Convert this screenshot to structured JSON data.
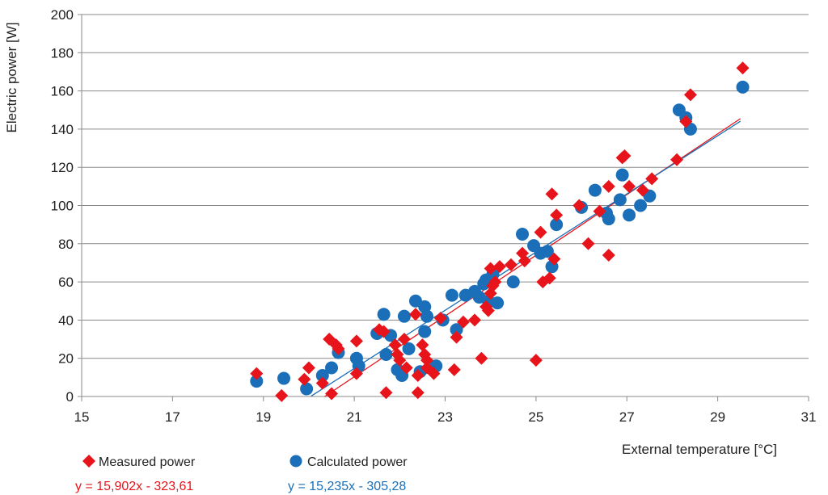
{
  "chart_data": {
    "type": "scatter",
    "xlabel": "External temperature  [°C]",
    "ylabel": "Electric power [W]",
    "xlim": [
      15,
      31
    ],
    "ylim": [
      0,
      200
    ],
    "xticks": [
      15,
      17,
      19,
      21,
      23,
      25,
      27,
      29,
      31
    ],
    "yticks": [
      0,
      20,
      40,
      60,
      80,
      100,
      120,
      140,
      160,
      180,
      200
    ],
    "grid": "horizontal",
    "legend_position": "bottom-left",
    "series": [
      {
        "name": "Measured power",
        "marker": "diamond",
        "color": "#e8141b",
        "trendline": {
          "equation": "y = 15,902x - 323,61",
          "slope": 15.902,
          "intercept": -323.61,
          "x_start": 20.35,
          "x_end": 29.5
        },
        "points": [
          [
            18.85,
            12
          ],
          [
            19.4,
            0.5
          ],
          [
            19.9,
            9
          ],
          [
            20.0,
            15
          ],
          [
            20.3,
            7
          ],
          [
            20.45,
            30
          ],
          [
            20.5,
            1.5
          ],
          [
            20.6,
            27
          ],
          [
            20.65,
            25
          ],
          [
            21.05,
            29
          ],
          [
            21.05,
            12
          ],
          [
            21.55,
            35
          ],
          [
            21.65,
            34
          ],
          [
            21.7,
            2
          ],
          [
            21.9,
            27
          ],
          [
            21.95,
            22
          ],
          [
            22.0,
            19
          ],
          [
            22.1,
            30
          ],
          [
            22.15,
            15
          ],
          [
            22.35,
            43
          ],
          [
            22.4,
            11
          ],
          [
            22.4,
            2
          ],
          [
            22.5,
            27
          ],
          [
            22.55,
            22
          ],
          [
            22.6,
            19
          ],
          [
            22.6,
            15
          ],
          [
            22.75,
            12
          ],
          [
            22.9,
            41
          ],
          [
            23.2,
            14
          ],
          [
            23.25,
            31
          ],
          [
            23.4,
            39
          ],
          [
            23.65,
            40
          ],
          [
            23.8,
            20
          ],
          [
            23.9,
            47
          ],
          [
            23.95,
            45
          ],
          [
            24.0,
            54
          ],
          [
            24.0,
            67
          ],
          [
            24.05,
            58
          ],
          [
            24.1,
            60
          ],
          [
            24.2,
            68
          ],
          [
            24.45,
            69
          ],
          [
            24.7,
            75
          ],
          [
            24.75,
            71
          ],
          [
            25.0,
            19
          ],
          [
            25.1,
            86
          ],
          [
            25.15,
            60
          ],
          [
            25.3,
            62
          ],
          [
            25.35,
            106
          ],
          [
            25.4,
            72
          ],
          [
            25.45,
            95
          ],
          [
            25.95,
            100
          ],
          [
            26.15,
            80
          ],
          [
            26.4,
            97
          ],
          [
            26.6,
            110
          ],
          [
            26.6,
            74
          ],
          [
            26.9,
            125
          ],
          [
            26.95,
            126
          ],
          [
            27.05,
            110
          ],
          [
            27.35,
            108
          ],
          [
            27.55,
            114
          ],
          [
            28.1,
            124
          ],
          [
            28.3,
            144
          ],
          [
            28.4,
            158
          ],
          [
            29.55,
            172
          ]
        ]
      },
      {
        "name": "Calculated power",
        "marker": "circle",
        "color": "#1a6fb8",
        "trendline": {
          "equation": "y = 15,235x - 305,28",
          "slope": 15.235,
          "intercept": -305.28,
          "x_start": 20.05,
          "x_end": 29.5
        },
        "points": [
          [
            18.85,
            8
          ],
          [
            19.45,
            9.5
          ],
          [
            19.95,
            4
          ],
          [
            20.3,
            11
          ],
          [
            20.5,
            15
          ],
          [
            20.65,
            23
          ],
          [
            21.05,
            20
          ],
          [
            21.1,
            16
          ],
          [
            21.5,
            33
          ],
          [
            21.65,
            43
          ],
          [
            21.7,
            22
          ],
          [
            21.8,
            32
          ],
          [
            21.95,
            14
          ],
          [
            22.05,
            11
          ],
          [
            22.1,
            42
          ],
          [
            22.2,
            25
          ],
          [
            22.35,
            50
          ],
          [
            22.45,
            13
          ],
          [
            22.55,
            47
          ],
          [
            22.55,
            34
          ],
          [
            22.6,
            42
          ],
          [
            22.8,
            16
          ],
          [
            22.95,
            40
          ],
          [
            23.15,
            53
          ],
          [
            23.25,
            35
          ],
          [
            23.45,
            53
          ],
          [
            23.65,
            55
          ],
          [
            23.75,
            52
          ],
          [
            23.85,
            59
          ],
          [
            23.9,
            61
          ],
          [
            23.95,
            50
          ],
          [
            24.05,
            64
          ],
          [
            24.15,
            49
          ],
          [
            24.5,
            60
          ],
          [
            24.7,
            85
          ],
          [
            24.95,
            79
          ],
          [
            25.1,
            75
          ],
          [
            25.25,
            76
          ],
          [
            25.35,
            68
          ],
          [
            25.45,
            90
          ],
          [
            26.0,
            99
          ],
          [
            26.3,
            108
          ],
          [
            26.55,
            96
          ],
          [
            26.6,
            93
          ],
          [
            26.85,
            103
          ],
          [
            26.9,
            116
          ],
          [
            27.05,
            95
          ],
          [
            27.3,
            100
          ],
          [
            27.5,
            105
          ],
          [
            28.15,
            150
          ],
          [
            28.3,
            146
          ],
          [
            28.4,
            140
          ],
          [
            29.55,
            162
          ]
        ]
      }
    ]
  }
}
